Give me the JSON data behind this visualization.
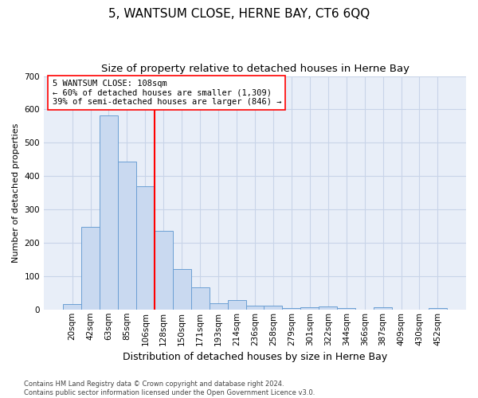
{
  "title": "5, WANTSUM CLOSE, HERNE BAY, CT6 6QQ",
  "subtitle": "Size of property relative to detached houses in Herne Bay",
  "xlabel": "Distribution of detached houses by size in Herne Bay",
  "ylabel": "Number of detached properties",
  "bar_color": "#c9d9f0",
  "bar_edge_color": "#6b9fd4",
  "grid_color": "#c8d4e8",
  "background_color": "#e8eef8",
  "categories": [
    "20sqm",
    "42sqm",
    "63sqm",
    "85sqm",
    "106sqm",
    "128sqm",
    "150sqm",
    "171sqm",
    "193sqm",
    "214sqm",
    "236sqm",
    "258sqm",
    "279sqm",
    "301sqm",
    "322sqm",
    "344sqm",
    "366sqm",
    "387sqm",
    "409sqm",
    "430sqm",
    "452sqm"
  ],
  "values": [
    15,
    247,
    583,
    443,
    370,
    236,
    120,
    67,
    18,
    28,
    12,
    11,
    5,
    6,
    8,
    5,
    0,
    7,
    0,
    0,
    5
  ],
  "ylim": [
    0,
    700
  ],
  "yticks": [
    0,
    100,
    200,
    300,
    400,
    500,
    600,
    700
  ],
  "marker_bar_index": 4,
  "marker_label": "5 WANTSUM CLOSE: 108sqm",
  "annotation_line1": "← 60% of detached houses are smaller (1,309)",
  "annotation_line2": "39% of semi-detached houses are larger (846) →",
  "footer1": "Contains HM Land Registry data © Crown copyright and database right 2024.",
  "footer2": "Contains public sector information licensed under the Open Government Licence v3.0.",
  "title_fontsize": 11,
  "subtitle_fontsize": 9.5,
  "xlabel_fontsize": 9,
  "ylabel_fontsize": 8,
  "tick_fontsize": 7.5,
  "footer_fontsize": 6
}
